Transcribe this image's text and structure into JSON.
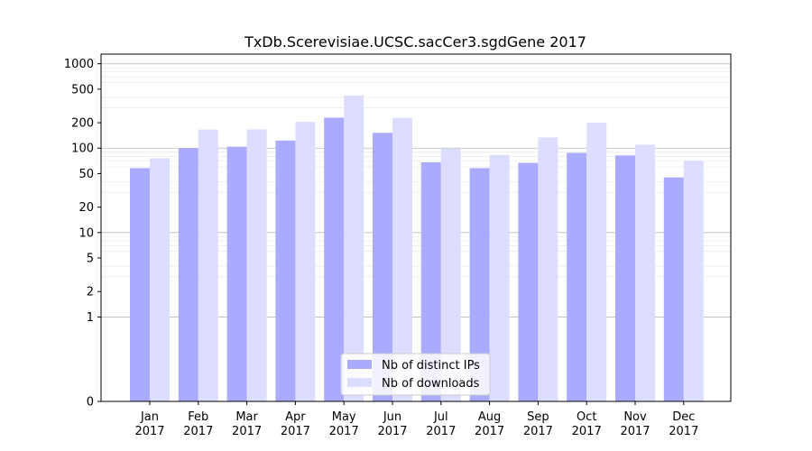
{
  "chart_data": {
    "type": "bar",
    "title": "TxDb.Scerevisiae.UCSC.sacCer3.sgdGene 2017",
    "xlabel": "",
    "ylabel": "",
    "yscale": "symlog",
    "ylim": [
      0,
      1300
    ],
    "yticks": [
      0,
      1,
      2,
      5,
      10,
      20,
      50,
      100,
      200,
      500,
      1000
    ],
    "ytick_labels": [
      "0",
      "1",
      "2",
      "5",
      "10",
      "20",
      "50",
      "100",
      "200",
      "500",
      "1000"
    ],
    "categories": [
      "Jan\n2017",
      "Feb\n2017",
      "Mar\n2017",
      "Apr\n2017",
      "May\n2017",
      "Jun\n2017",
      "Jul\n2017",
      "Aug\n2017",
      "Sep\n2017",
      "Oct\n2017",
      "Nov\n2017",
      "Dec\n2017"
    ],
    "category_lines": [
      [
        "Jan",
        "2017"
      ],
      [
        "Feb",
        "2017"
      ],
      [
        "Mar",
        "2017"
      ],
      [
        "Apr",
        "2017"
      ],
      [
        "May",
        "2017"
      ],
      [
        "Jun",
        "2017"
      ],
      [
        "Jul",
        "2017"
      ],
      [
        "Aug",
        "2017"
      ],
      [
        "Sep",
        "2017"
      ],
      [
        "Oct",
        "2017"
      ],
      [
        "Nov",
        "2017"
      ],
      [
        "Dec",
        "2017"
      ]
    ],
    "series": [
      {
        "name": "Nb of distinct IPs",
        "color": "#aaaaff",
        "values": [
          58,
          100,
          104,
          123,
          230,
          152,
          68,
          58,
          67,
          88,
          82,
          45
        ]
      },
      {
        "name": "Nb of downloads",
        "color": "#ddddff",
        "values": [
          76,
          166,
          167,
          205,
          420,
          228,
          99,
          83,
          134,
          200,
          110,
          71
        ]
      }
    ],
    "grid": "y",
    "legend_position": "bottom-center"
  }
}
